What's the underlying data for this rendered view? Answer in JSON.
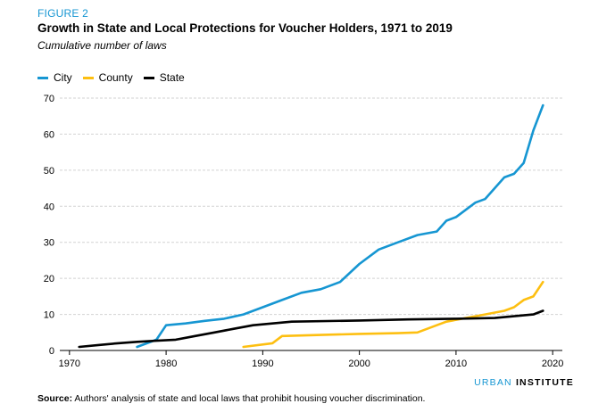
{
  "figure_label": "FIGURE 2",
  "chart_data": {
    "type": "line",
    "title": "Growth in State and Local Protections for Voucher Holders, 1971 to 2019",
    "subtitle": "Cumulative number of laws",
    "xlabel": "",
    "ylabel": "",
    "xlim": [
      1969,
      2021
    ],
    "ylim": [
      0,
      70
    ],
    "xticks": [
      1970,
      1980,
      1990,
      2000,
      2010,
      2020
    ],
    "yticks": [
      0,
      10,
      20,
      30,
      40,
      50,
      60,
      70
    ],
    "grid": true,
    "legend_position": "top-left",
    "series": [
      {
        "name": "City",
        "color": "#1696d2",
        "points": [
          [
            1977,
            1
          ],
          [
            1979,
            3
          ],
          [
            1980,
            7
          ],
          [
            1982,
            7.5
          ],
          [
            1984,
            8.2
          ],
          [
            1986,
            8.8
          ],
          [
            1988,
            10
          ],
          [
            1990,
            12
          ],
          [
            1992,
            14
          ],
          [
            1994,
            16
          ],
          [
            1996,
            17
          ],
          [
            1998,
            19
          ],
          [
            2000,
            24
          ],
          [
            2002,
            28
          ],
          [
            2004,
            30
          ],
          [
            2006,
            32
          ],
          [
            2008,
            33
          ],
          [
            2009,
            36
          ],
          [
            2010,
            37
          ],
          [
            2012,
            41
          ],
          [
            2013,
            42
          ],
          [
            2015,
            48
          ],
          [
            2016,
            49
          ],
          [
            2017,
            52
          ],
          [
            2018,
            61
          ],
          [
            2019,
            68
          ]
        ]
      },
      {
        "name": "County",
        "color": "#fdbf11",
        "points": [
          [
            1988,
            1
          ],
          [
            1991,
            2
          ],
          [
            1992,
            4
          ],
          [
            1996,
            4.3
          ],
          [
            2000,
            4.6
          ],
          [
            2004,
            4.8
          ],
          [
            2006,
            5
          ],
          [
            2008,
            7
          ],
          [
            2009,
            8
          ],
          [
            2011,
            9
          ],
          [
            2013,
            10
          ],
          [
            2015,
            11
          ],
          [
            2016,
            12
          ],
          [
            2017,
            14
          ],
          [
            2018,
            15
          ],
          [
            2019,
            19
          ]
        ]
      },
      {
        "name": "State",
        "color": "#000000",
        "points": [
          [
            1971,
            1
          ],
          [
            1973,
            1.5
          ],
          [
            1975,
            2
          ],
          [
            1977,
            2.4
          ],
          [
            1979,
            2.7
          ],
          [
            1981,
            3
          ],
          [
            1983,
            4
          ],
          [
            1985,
            5
          ],
          [
            1987,
            6
          ],
          [
            1989,
            7
          ],
          [
            1991,
            7.5
          ],
          [
            1993,
            8
          ],
          [
            2000,
            8.3
          ],
          [
            2005,
            8.6
          ],
          [
            2010,
            8.8
          ],
          [
            2014,
            9
          ],
          [
            2016,
            9.5
          ],
          [
            2018,
            10
          ],
          [
            2019,
            11
          ]
        ]
      }
    ]
  },
  "branding": {
    "part1": "URBAN ",
    "part2": "INSTITUTE"
  },
  "source": {
    "label": "Source:",
    "text": " Authors' analysis of state and local laws that prohibit housing voucher discrimination."
  }
}
